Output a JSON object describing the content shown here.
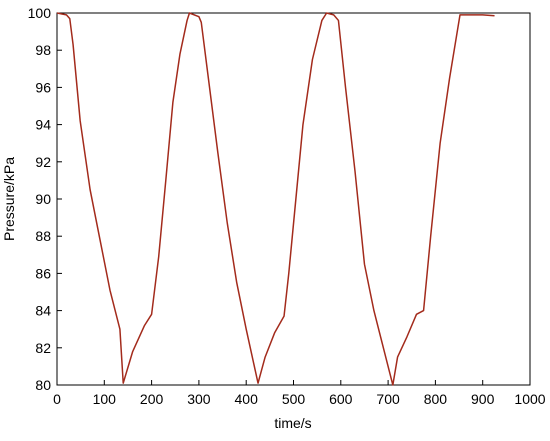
{
  "chart_data": {
    "type": "line",
    "x_label": "time/s",
    "y_label": "Pressure/kPa",
    "x": [
      0,
      20,
      27,
      34,
      49,
      70,
      91,
      112,
      133,
      140,
      160,
      185,
      200,
      215,
      230,
      245,
      260,
      275,
      280,
      300,
      305,
      320,
      340,
      360,
      380,
      400,
      425,
      440,
      460,
      480,
      490,
      505,
      520,
      540,
      560,
      570,
      585,
      595,
      610,
      630,
      650,
      670,
      690,
      710,
      720,
      740,
      760,
      775,
      790,
      810,
      830,
      852,
      900,
      925
    ],
    "series": [
      {
        "name": "Pressure",
        "color": "#a32b1c",
        "values": [
          100,
          99.9,
          99.7,
          98.3,
          94.2,
          90.5,
          87.8,
          85.1,
          83,
          80.1,
          81.8,
          83.2,
          83.8,
          86.9,
          91,
          95.2,
          97.8,
          99.6,
          100,
          99.8,
          99.5,
          96.5,
          92.5,
          88.7,
          85.5,
          83,
          80.1,
          81.5,
          82.8,
          83.7,
          86,
          90,
          94,
          97.5,
          99.6,
          100,
          99.9,
          99.6,
          96,
          91.5,
          86.5,
          84,
          82,
          80,
          81.5,
          82.6,
          83.8,
          84,
          88,
          93,
          96.5,
          99.9,
          99.9,
          99.85
        ]
      }
    ],
    "xlim": [
      0,
      1000
    ],
    "xticks": [
      0,
      100,
      200,
      300,
      400,
      500,
      600,
      700,
      800,
      900,
      1000
    ],
    "ylim": [
      80,
      100
    ],
    "yticks": [
      80,
      82,
      84,
      86,
      88,
      90,
      92,
      94,
      96,
      98,
      100
    ],
    "grid": false
  }
}
